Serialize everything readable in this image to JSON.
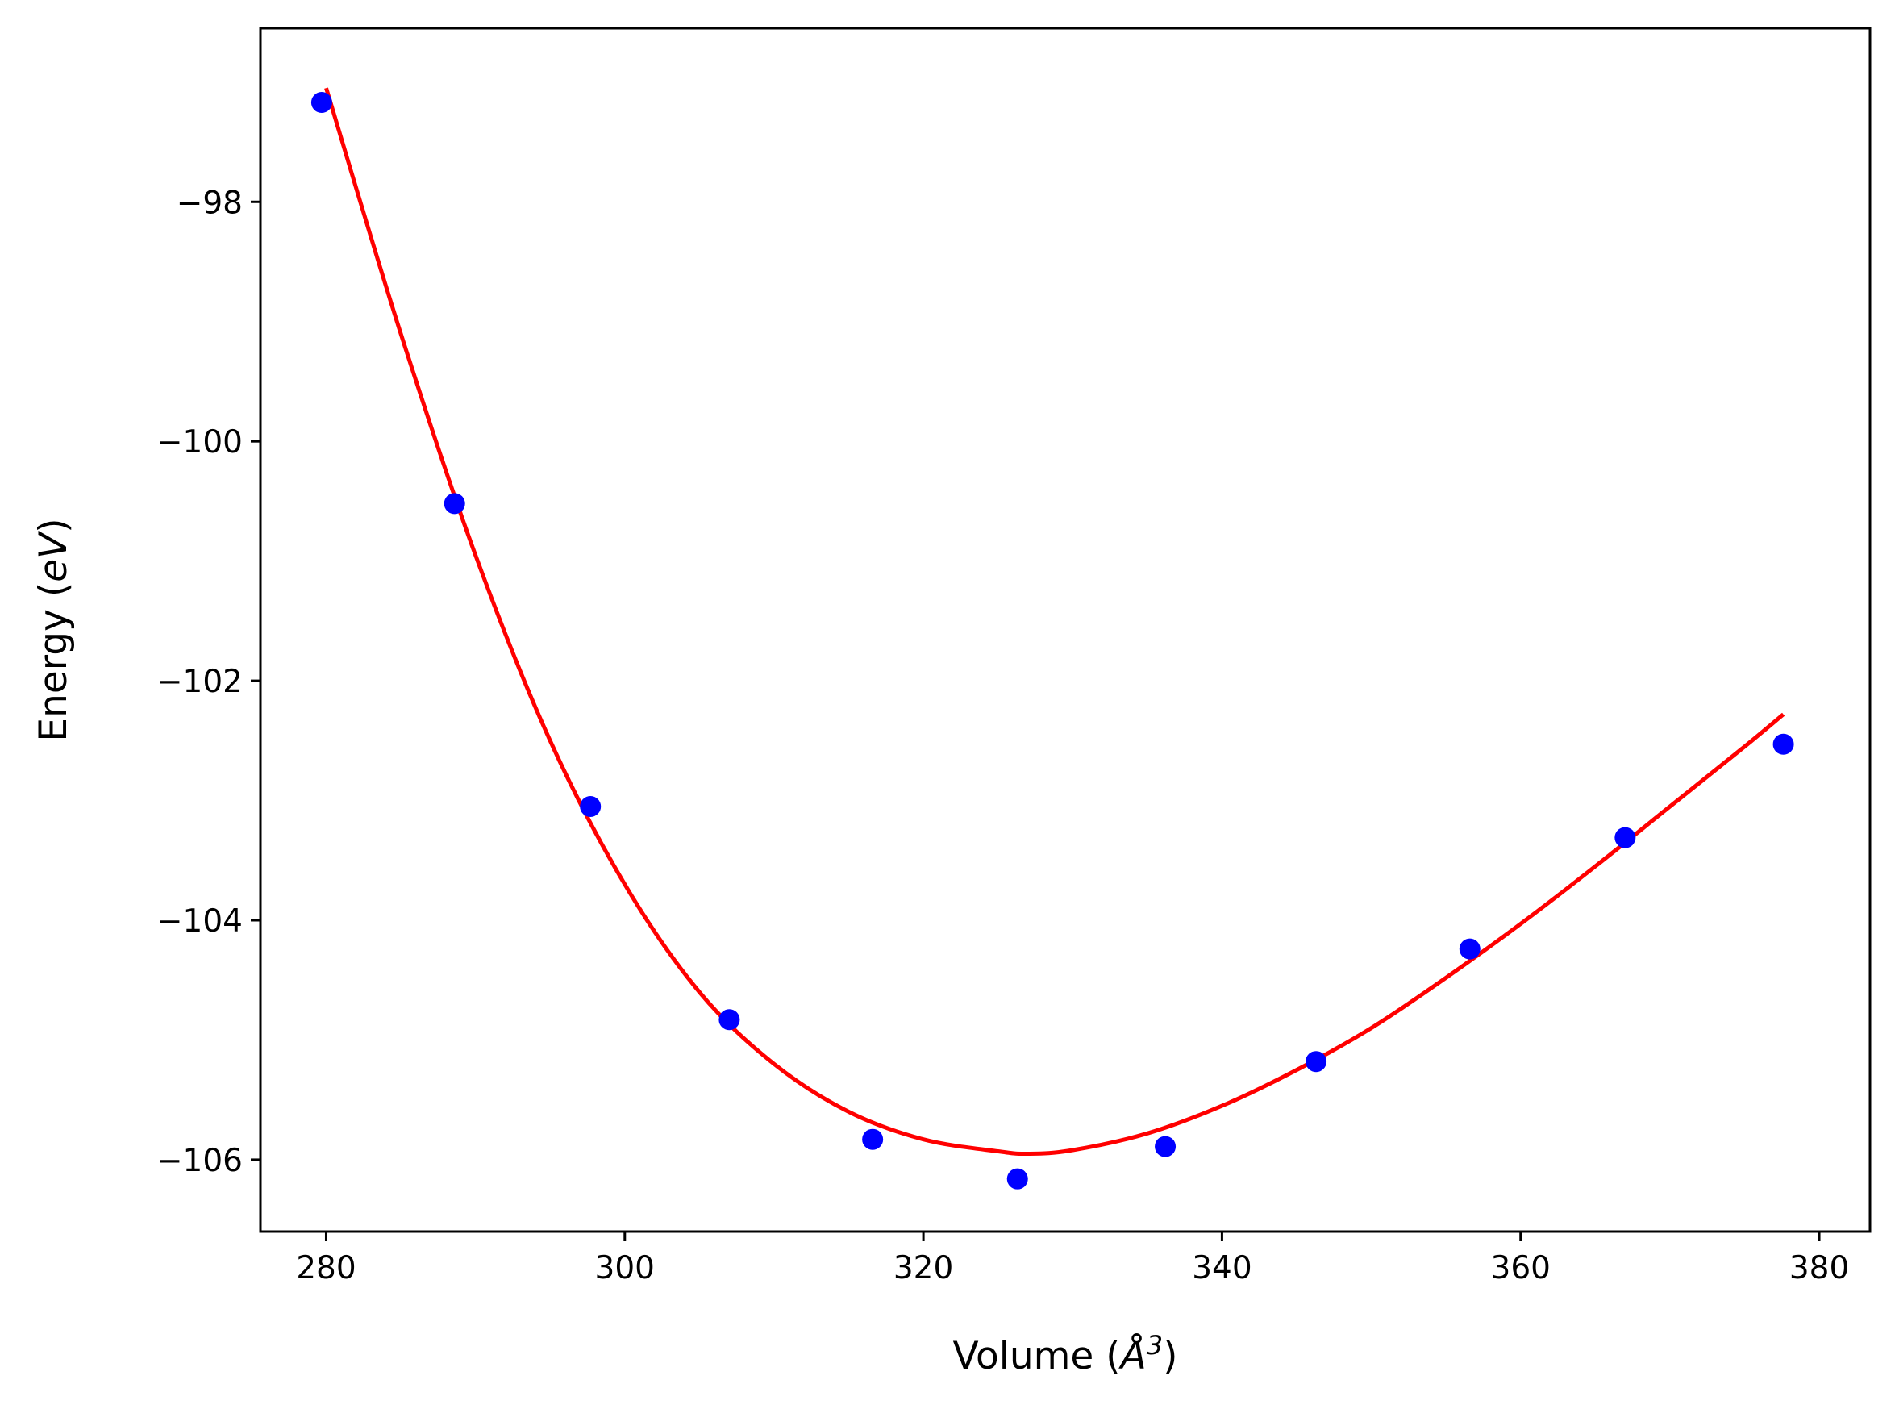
{
  "chart_data": {
    "type": "scatter",
    "title": "",
    "xlabel": {
      "prefix": "Volume (",
      "unit": "Å",
      "power": "3",
      "suffix": ")"
    },
    "ylabel": {
      "prefix": "Energy (",
      "unit": "eV",
      "suffix": ")"
    },
    "xlim": [
      275.6,
      383.4
    ],
    "ylim": [
      -106.6,
      -96.55
    ],
    "xticks": [
      280,
      300,
      320,
      340,
      360,
      380
    ],
    "yticks": [
      -106,
      -104,
      -102,
      -100,
      -98
    ],
    "xtick_labels": [
      "280",
      "300",
      "320",
      "340",
      "360",
      "380"
    ],
    "ytick_labels": [
      "−106",
      "−104",
      "−102",
      "−100",
      "−98"
    ],
    "grid": false,
    "legend": "none",
    "series": [
      {
        "kind": "points",
        "color": "#0000ff",
        "x": [
          279.7,
          288.6,
          297.7,
          307.0,
          316.6,
          326.3,
          336.2,
          346.3,
          356.6,
          367.0,
          377.6
        ],
        "y": [
          -97.17,
          -100.52,
          -103.05,
          -104.83,
          -105.83,
          -106.16,
          -105.89,
          -105.18,
          -104.24,
          -103.31,
          -102.53
        ]
      },
      {
        "kind": "line",
        "color": "#ff0000",
        "x": [
          280,
          285,
          290,
          295,
          300,
          305,
          310,
          315,
          320,
          325,
          327,
          330,
          335,
          340,
          345,
          350,
          355,
          360,
          365,
          370,
          375,
          377.6
        ],
        "y": [
          -97.05,
          -99.1,
          -100.95,
          -102.5,
          -103.7,
          -104.6,
          -105.2,
          -105.6,
          -105.83,
          -105.93,
          -105.95,
          -105.92,
          -105.78,
          -105.55,
          -105.25,
          -104.9,
          -104.48,
          -104.03,
          -103.55,
          -103.05,
          -102.55,
          -102.28
        ]
      }
    ]
  }
}
